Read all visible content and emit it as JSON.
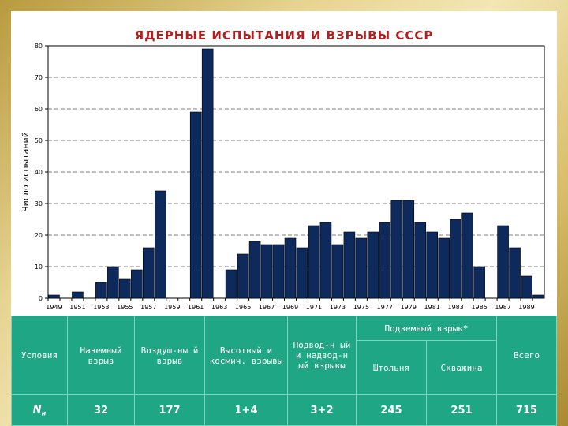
{
  "title": "ЯДЕРНЫЕ ИСПЫТАНИЯ И ВЗРЫВЫ СССР",
  "chart_data": {
    "type": "bar",
    "ylabel": "Число испытаний",
    "xlabel": "",
    "ylim": [
      0,
      80
    ],
    "yticks": [
      0,
      10,
      20,
      30,
      40,
      50,
      60,
      70,
      80
    ],
    "grid": true,
    "bar_color": "#0e2a5c",
    "categories": [
      1949,
      1950,
      1951,
      1952,
      1953,
      1954,
      1955,
      1956,
      1957,
      1958,
      1959,
      1960,
      1961,
      1962,
      1963,
      1964,
      1965,
      1966,
      1967,
      1968,
      1969,
      1970,
      1971,
      1972,
      1973,
      1974,
      1975,
      1976,
      1977,
      1978,
      1979,
      1980,
      1981,
      1982,
      1983,
      1984,
      1985,
      1986,
      1987,
      1988,
      1989,
      1990
    ],
    "values": [
      1,
      0,
      2,
      0,
      5,
      10,
      6,
      9,
      16,
      34,
      0,
      0,
      59,
      79,
      0,
      9,
      14,
      18,
      17,
      17,
      19,
      16,
      23,
      24,
      17,
      21,
      19,
      21,
      24,
      31,
      31,
      24,
      21,
      19,
      25,
      27,
      10,
      0,
      23,
      16,
      7,
      1
    ],
    "tick_labels": [
      "1949",
      "1951",
      "1953",
      "1955",
      "1957",
      "1959",
      "1961",
      "1963",
      "1965",
      "1967",
      "1969",
      "1971",
      "1973",
      "1975",
      "1977",
      "1979",
      "1981",
      "1983",
      "1985",
      "1987",
      "1989"
    ]
  },
  "table": {
    "headers": {
      "conditions": "Условия",
      "ground": "Наземный взрыв",
      "air": "Воздуш-ны й взрыв",
      "high": "Высотный и космич. взрывы",
      "water": "Подвод-н ый и надвод-н ый взрывы",
      "underground": "Подземный взрыв*",
      "adit": "Штольня",
      "borehole": "Скважина",
      "total": "Всего"
    },
    "row_label": "N",
    "row_label_sub": "и",
    "values": {
      "ground": "32",
      "air": "177",
      "high": "1+4",
      "water": "3+2",
      "adit": "245",
      "borehole": "251",
      "total": "715"
    }
  }
}
